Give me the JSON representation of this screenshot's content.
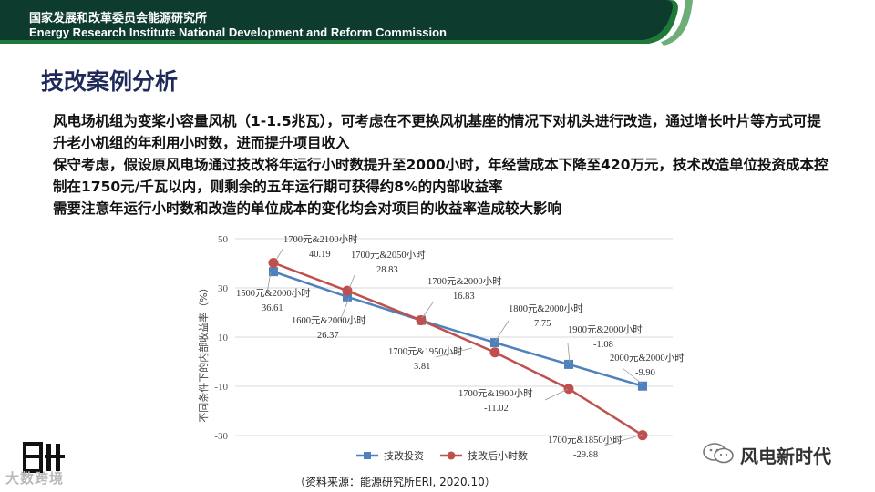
{
  "header": {
    "org_cn": "国家发展和改革委员会能源研究所",
    "org_en": "Energy Research Institute National Development and Reform Commission"
  },
  "title": "技改案例分析",
  "paragraphs": [
    "风电场机组为变桨小容量风机（1-1.5兆瓦），可考虑在不更换风机基座的情况下对机头进行改造，通过增长叶片等方式可提升老小机组的年利用小时数，进而提升项目收入",
    "保守考虑，假设原风电场通过技改将年运行小时数提升至2000小时，年经营成本下降至420万元，技术改造单位投资成本控制在1750元/千瓦以内，则剩余的五年运行期可获得约8%的内部收益率",
    "需要注意年运行小时数和改造的单位成本的变化均会对项目的收益率造成较大影响"
  ],
  "chart_data": {
    "type": "line",
    "ylabel": "不同条件下的内部收益率（%）",
    "ylim": [
      -30,
      50
    ],
    "yticks": [
      -30,
      -10,
      10,
      30,
      50
    ],
    "grid": true,
    "legend_position": "bottom",
    "series": [
      {
        "name": "技改投资",
        "color": "#4f81bd",
        "marker": "square",
        "points": [
          {
            "label": "1500元&2000小时",
            "value": 36.61
          },
          {
            "label": "1600元&2000小时",
            "value": 26.37
          },
          {
            "label": "1700元&2000小时",
            "value": 16.83
          },
          {
            "label": "1800元&2000小时",
            "value": 7.75
          },
          {
            "label": "1900元&2000小时",
            "value": -1.08
          },
          {
            "label": "2000元&2000小时",
            "value": -9.9
          }
        ]
      },
      {
        "name": "技改后小时数",
        "color": "#c0504d",
        "marker": "circle",
        "points": [
          {
            "label": "1700元&2100小时",
            "value": 40.19
          },
          {
            "label": "1700元&2050小时",
            "value": 28.83
          },
          {
            "label": "1700元&2000小时",
            "value": 16.83
          },
          {
            "label": "1700元&1950小时",
            "value": 3.81
          },
          {
            "label": "1700元&1900小时",
            "value": -11.02
          },
          {
            "label": "1700元&1850小时",
            "value": -29.88
          }
        ]
      }
    ],
    "annotations": [
      {
        "label": "1700元&2100小时",
        "value": "40.19"
      },
      {
        "label": "1700元&2050小时",
        "value": "28.83"
      },
      {
        "label": "1500元&2000小时",
        "value": "36.61"
      },
      {
        "label": "1600元&2000小时",
        "value": "26.37"
      },
      {
        "label": "1700元&2000小时",
        "value": "16.83"
      },
      {
        "label": "1800元&2000小时",
        "value": "7.75"
      },
      {
        "label": "1700元&1950小时",
        "value": "3.81"
      },
      {
        "label": "1900元&2000小时",
        "value": "-1.08"
      },
      {
        "label": "2000元&2000小时",
        "value": "-9.90"
      },
      {
        "label": "1700元&1900小时",
        "value": "-11.02"
      },
      {
        "label": "1700元&1850小时",
        "value": "-29.88"
      }
    ]
  },
  "source": "（资料来源：能源研究所ERI, 2020.10）",
  "watermark_left": "大数跨境",
  "watermark_right": "风电新时代",
  "colors": {
    "banner_dark": "#0d3b2e",
    "banner_green": "#1f7a3a",
    "title": "#1f2a5a",
    "series_blue": "#4f81bd",
    "series_red": "#c0504d"
  }
}
